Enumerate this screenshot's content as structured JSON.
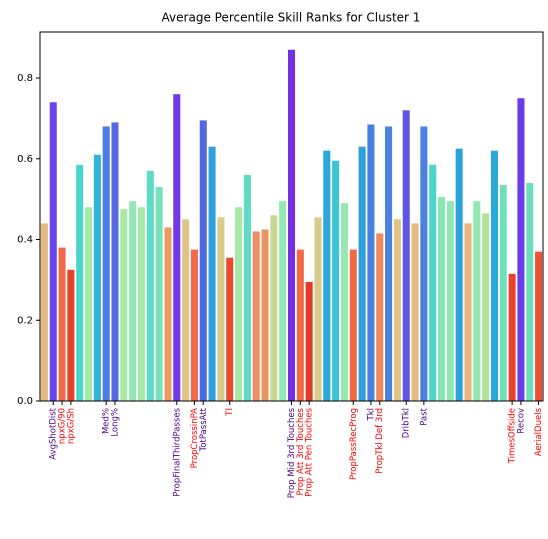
{
  "chart_data": {
    "type": "bar",
    "title": "Average Percentile Skill Ranks for Cluster 1",
    "categories": [
      null,
      "AvgShotDist",
      "npxG/90",
      "npxG/Sh",
      null,
      null,
      null,
      "Med%",
      "Long%",
      null,
      null,
      null,
      null,
      null,
      null,
      "PropFinalThirdPasses",
      null,
      "PropCrossinPA",
      "TotPassAtt",
      null,
      null,
      "TI",
      null,
      null,
      null,
      null,
      null,
      null,
      "Prop Mid 3rd Touches",
      "Prop Att 3rd Touches",
      "Prop Att Pen Touches",
      null,
      null,
      null,
      null,
      "PropPassRecProg",
      null,
      "Tkl",
      "PropTkl Def 3rd",
      null,
      null,
      "DribTkl",
      null,
      "Past",
      null,
      null,
      null,
      null,
      null,
      null,
      null,
      null,
      null,
      "TimesOffside",
      "Recov",
      null,
      "AerialDuels"
    ],
    "values": [
      0.44,
      0.74,
      0.38,
      0.325,
      0.585,
      0.48,
      0.61,
      0.68,
      0.69,
      0.475,
      0.495,
      0.48,
      0.57,
      0.53,
      0.43,
      0.76,
      0.45,
      0.375,
      0.695,
      0.63,
      0.455,
      0.355,
      0.48,
      0.56,
      0.42,
      0.425,
      0.46,
      0.495,
      0.87,
      0.375,
      0.295,
      0.455,
      0.62,
      0.595,
      0.49,
      0.375,
      0.63,
      0.685,
      0.415,
      0.68,
      0.45,
      0.72,
      0.44,
      0.68,
      0.585,
      0.505,
      0.495,
      0.625,
      0.44,
      0.495,
      0.465,
      0.62,
      0.535,
      0.315,
      0.75,
      0.54,
      0.37
    ],
    "colors": [
      "#e4bc82",
      "#6a44ea",
      "#f06a48",
      "#e8412a",
      "#4ad4cc",
      "#a2eaa6",
      "#30b4d8",
      "#4a7ae2",
      "#5468e2",
      "#a6eaa4",
      "#92e8b0",
      "#a2eaa6",
      "#5cdcc6",
      "#76e2bc",
      "#eb9a62",
      "#7038e6",
      "#e2c488",
      "#f06a48",
      "#5068e2",
      "#2ea0dc",
      "#d8cc8a",
      "#ea4a30",
      "#a2eaa6",
      "#60dcc4",
      "#eb9060",
      "#ea9462",
      "#c8d88e",
      "#92e8b0",
      "#7430e0",
      "#f06a48",
      "#e23a26",
      "#d8cc8a",
      "#2aa8da",
      "#3cc4d2",
      "#96e8ae",
      "#f06a48",
      "#2ea0dc",
      "#4680e0",
      "#f08a5a",
      "#4a80e0",
      "#e2c488",
      "#6056e4",
      "#e4bc82",
      "#4a80e0",
      "#4ad4cc",
      "#88e6b4",
      "#92e8b0",
      "#2aa4da",
      "#eab47c",
      "#92e8b0",
      "#b2e29c",
      "#2aa8da",
      "#70e0bc",
      "#e8412a",
      "#6a3ce8",
      "#6cdebe",
      "#ee5236"
    ],
    "category_label_colors": [
      null,
      "#4b0082",
      "#ff0000",
      "#ff0000",
      null,
      null,
      null,
      "#4b0082",
      "#4b0082",
      null,
      null,
      null,
      null,
      null,
      null,
      "#4b0082",
      null,
      "#ff0000",
      "#4b0082",
      null,
      null,
      "#ff0000",
      null,
      null,
      null,
      null,
      null,
      null,
      "#4b0082",
      "#ff0000",
      "#ff0000",
      null,
      null,
      null,
      null,
      "#ff0000",
      null,
      "#4b0082",
      "#ff0000",
      null,
      null,
      "#4b0082",
      null,
      "#4b0082",
      null,
      null,
      null,
      null,
      null,
      null,
      null,
      null,
      null,
      "#ff0000",
      "#4b0082",
      null,
      "#ff0000"
    ],
    "ylim": [
      0,
      0.914
    ],
    "yticks": [
      {
        "value": 0,
        "label": "0.0"
      },
      {
        "value": 0.2,
        "label": "0.2"
      },
      {
        "value": 0.4,
        "label": "0.4"
      },
      {
        "value": 0.6,
        "label": "0.6"
      },
      {
        "value": 0.8,
        "label": "0.8"
      }
    ],
    "grid": false
  }
}
